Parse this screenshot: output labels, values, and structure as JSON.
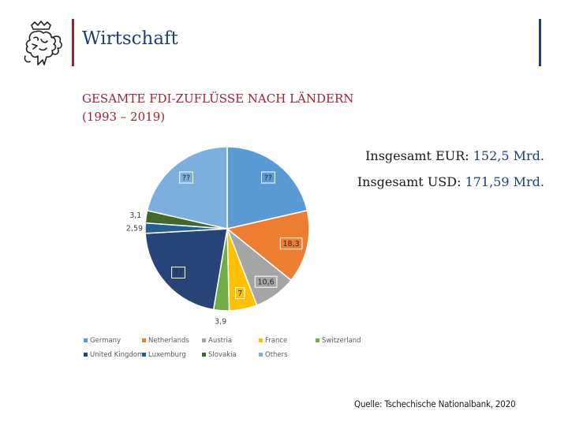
{
  "section": {
    "title": "Wirtschaft"
  },
  "header": {
    "title_line1": "GESAMTE FDI-ZUFLÜSSE NACH LÄNDERN",
    "title_line2": "(1993 – 2019)"
  },
  "totals": {
    "eur_label": "Insgesamt EUR: ",
    "eur_value": "152,5 Mrd.",
    "usd_label": "Insgesamt USD: ",
    "usd_value": "171,59 Mrd."
  },
  "source": "Quelle: Tschechische Nationalbank, 2020",
  "chart_data": {
    "type": "pie",
    "title": "",
    "categories": [
      "Germany",
      "Netherlands",
      "Austria",
      "France",
      "Switzerland",
      "United Kingdom",
      "Luxemburg",
      "Slovakia",
      "Others"
    ],
    "values": [
      27.3,
      18.3,
      10.6,
      7,
      3.9,
      27.3,
      2.59,
      3.1,
      27.3
    ],
    "data_labels": [
      "??",
      "18,3",
      "10,6",
      "7",
      "3,9",
      "??",
      "2,59",
      "3,1",
      "??"
    ],
    "colors": [
      "#5b9bd5",
      "#ed7d31",
      "#a5a5a5",
      "#ffc000",
      "#70ad47",
      "#264478",
      "#255e91",
      "#43682b",
      "#7cafdd"
    ],
    "legend_position": "bottom",
    "legend": [
      "Germany",
      "Netherlands",
      "Austria",
      "France",
      "Switzerland",
      "United Kingdom",
      "Luxemburg",
      "Slovakia",
      "Others"
    ]
  }
}
